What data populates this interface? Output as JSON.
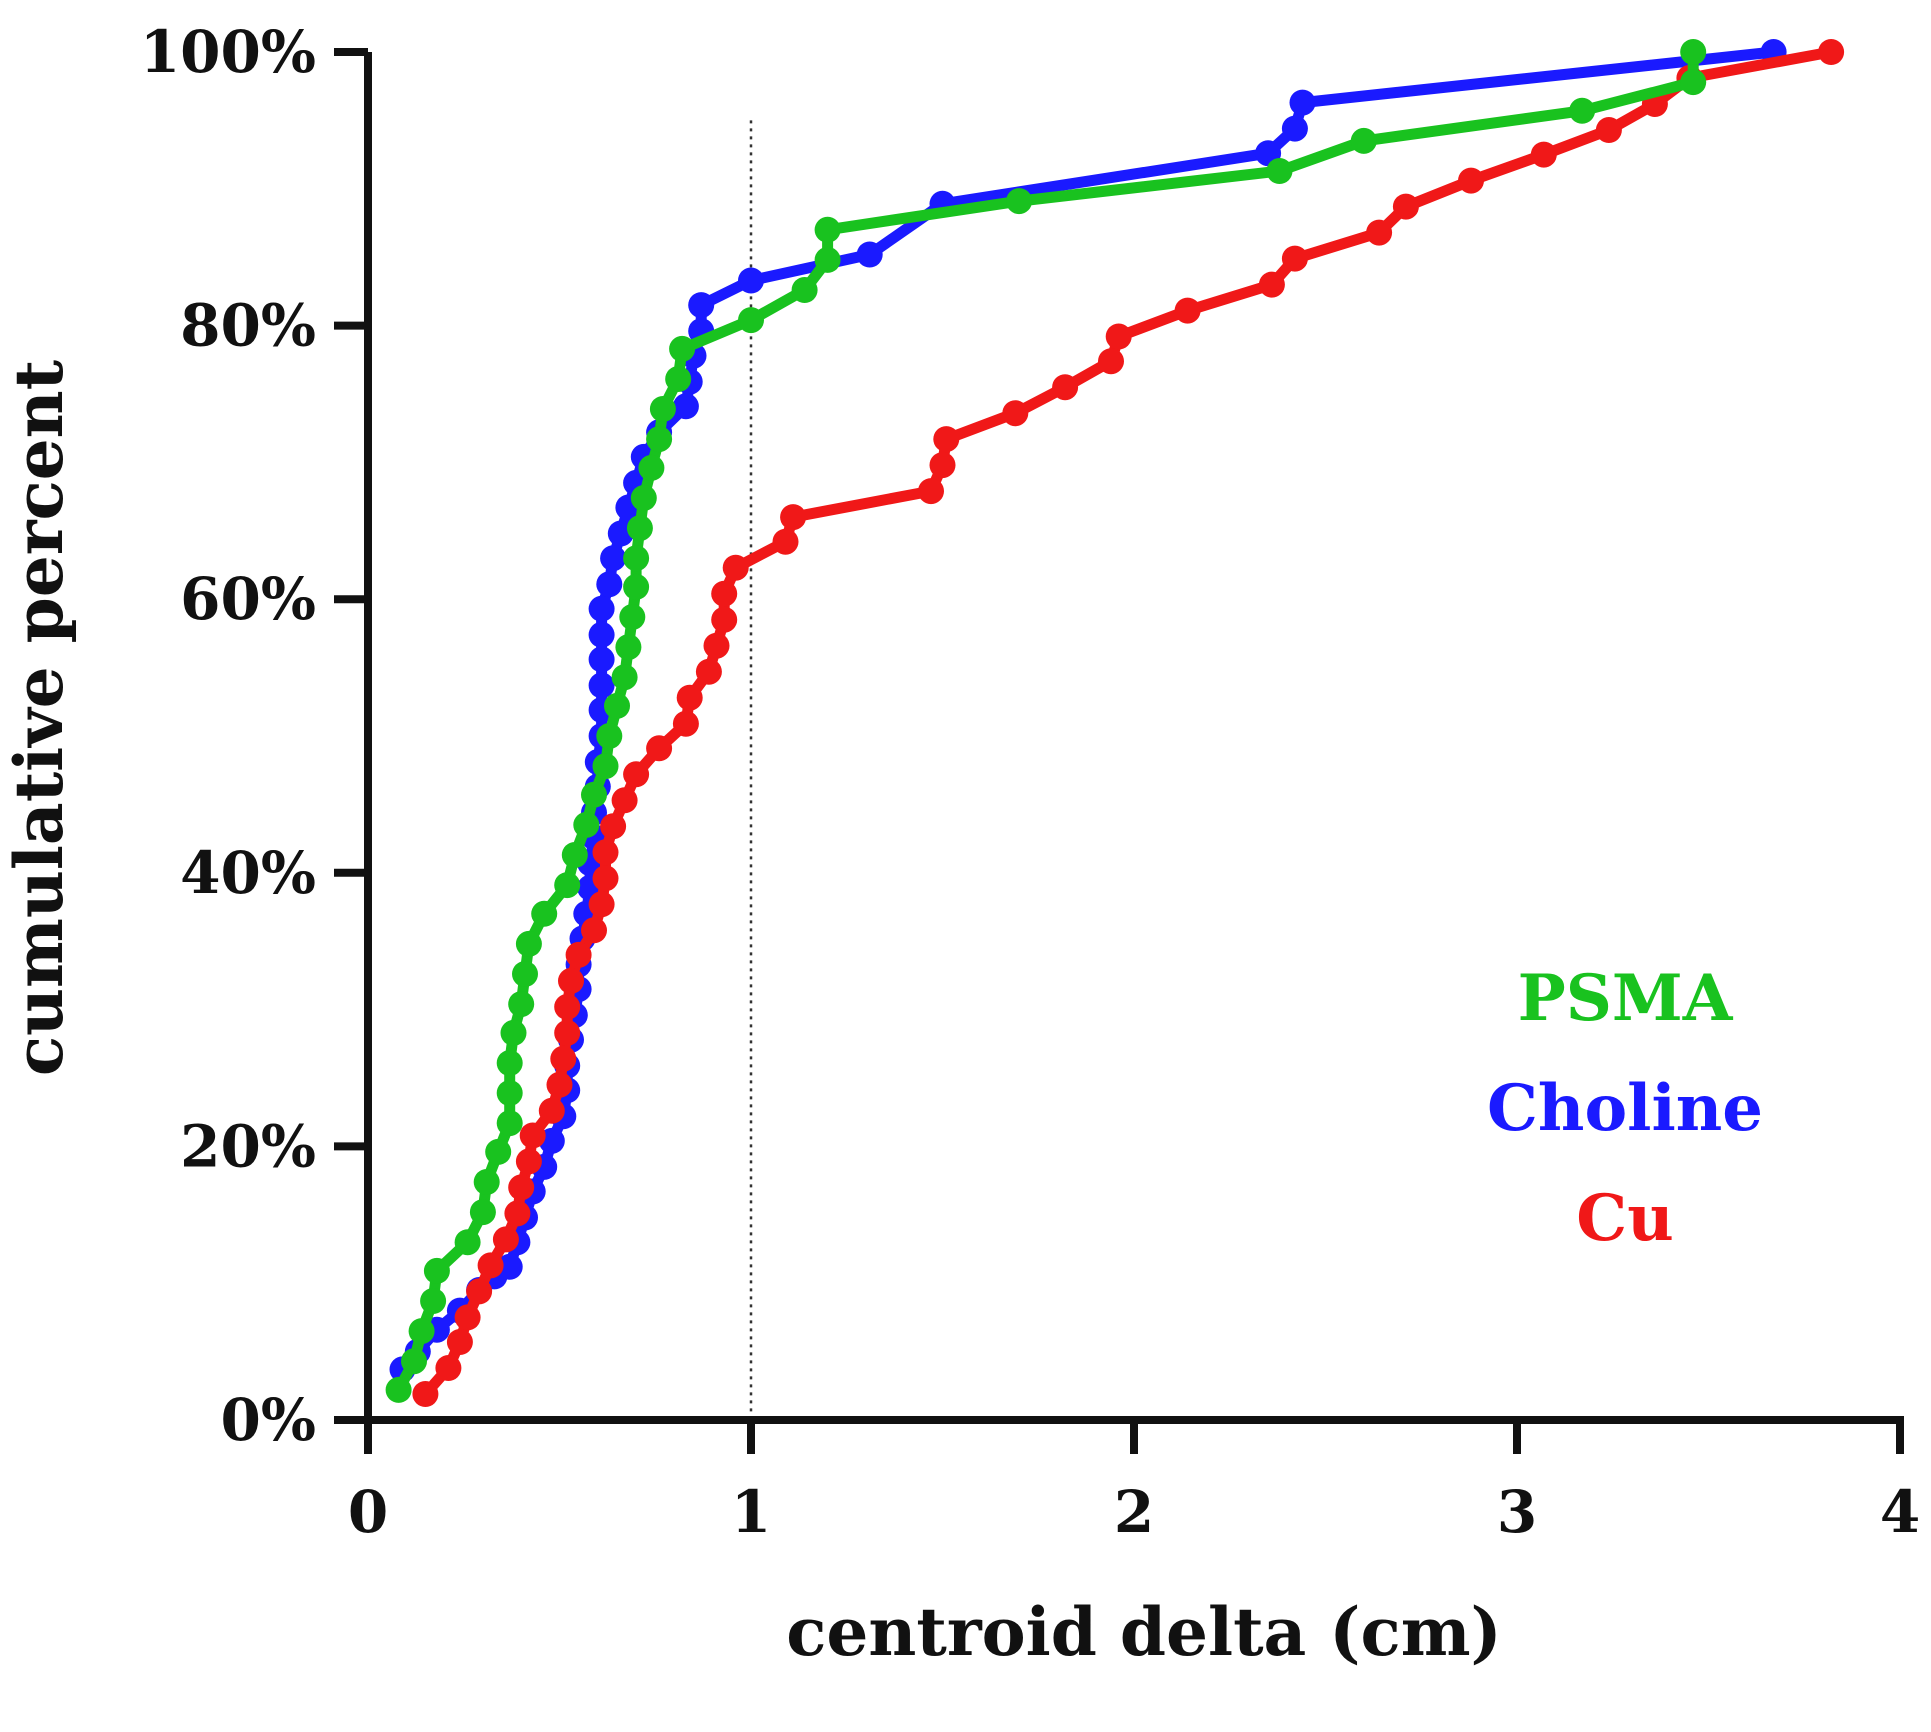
{
  "chart_data": {
    "type": "line",
    "title": "",
    "xlabel": "centroid delta (cm)",
    "ylabel": "cumulative percent",
    "xlim": [
      0,
      4
    ],
    "ylim": [
      0,
      100
    ],
    "xticks": [
      0,
      1,
      2,
      3,
      4
    ],
    "xtick_labels": [
      "0",
      "1",
      "2",
      "3",
      "4"
    ],
    "yticks": [
      0,
      20,
      40,
      60,
      80,
      100
    ],
    "ytick_labels": [
      "0%",
      "20%",
      "40%",
      "60%",
      "80%",
      "100%"
    ],
    "grid": false,
    "reference_line": {
      "axis": "x",
      "value": 1.0,
      "style": "dotted"
    },
    "legend": {
      "placement": "right"
    },
    "series": [
      {
        "name": "Choline",
        "color": "#1a1aff",
        "points": [
          [
            0.09,
            3.7
          ],
          [
            0.13,
            5.0
          ],
          [
            0.18,
            6.6
          ],
          [
            0.24,
            8.0
          ],
          [
            0.29,
            9.5
          ],
          [
            0.33,
            10.5
          ],
          [
            0.37,
            11.2
          ],
          [
            0.39,
            13.0
          ],
          [
            0.41,
            14.8
          ],
          [
            0.43,
            16.7
          ],
          [
            0.46,
            18.5
          ],
          [
            0.48,
            20.4
          ],
          [
            0.51,
            22.2
          ],
          [
            0.52,
            24.1
          ],
          [
            0.52,
            25.9
          ],
          [
            0.53,
            27.8
          ],
          [
            0.54,
            29.6
          ],
          [
            0.55,
            31.5
          ],
          [
            0.55,
            33.3
          ],
          [
            0.56,
            35.2
          ],
          [
            0.57,
            37.0
          ],
          [
            0.58,
            38.9
          ],
          [
            0.58,
            40.7
          ],
          [
            0.59,
            42.6
          ],
          [
            0.59,
            44.4
          ],
          [
            0.6,
            46.3
          ],
          [
            0.6,
            48.1
          ],
          [
            0.61,
            50.0
          ],
          [
            0.61,
            51.9
          ],
          [
            0.61,
            53.7
          ],
          [
            0.61,
            55.6
          ],
          [
            0.61,
            57.4
          ],
          [
            0.61,
            59.3
          ],
          [
            0.63,
            61.1
          ],
          [
            0.64,
            63.0
          ],
          [
            0.66,
            64.8
          ],
          [
            0.68,
            66.7
          ],
          [
            0.7,
            68.5
          ],
          [
            0.72,
            70.4
          ],
          [
            0.76,
            72.2
          ],
          [
            0.83,
            74.1
          ],
          [
            0.84,
            75.9
          ],
          [
            0.85,
            77.8
          ],
          [
            0.87,
            79.6
          ],
          [
            0.87,
            81.5
          ],
          [
            1.0,
            83.3
          ],
          [
            1.31,
            85.2
          ],
          [
            1.5,
            88.9
          ],
          [
            2.35,
            92.6
          ],
          [
            2.42,
            94.4
          ],
          [
            2.44,
            96.3
          ],
          [
            3.67,
            100.0
          ]
        ]
      },
      {
        "name": "PSMA",
        "color": "#19c21f",
        "points": [
          [
            0.08,
            2.2
          ],
          [
            0.12,
            4.3
          ],
          [
            0.14,
            6.5
          ],
          [
            0.17,
            8.7
          ],
          [
            0.18,
            10.9
          ],
          [
            0.26,
            13.0
          ],
          [
            0.3,
            15.2
          ],
          [
            0.31,
            17.4
          ],
          [
            0.34,
            19.6
          ],
          [
            0.37,
            21.7
          ],
          [
            0.37,
            23.9
          ],
          [
            0.37,
            26.1
          ],
          [
            0.38,
            28.3
          ],
          [
            0.4,
            30.4
          ],
          [
            0.41,
            32.6
          ],
          [
            0.42,
            34.8
          ],
          [
            0.46,
            37.0
          ],
          [
            0.52,
            39.1
          ],
          [
            0.54,
            41.3
          ],
          [
            0.57,
            43.5
          ],
          [
            0.59,
            45.7
          ],
          [
            0.62,
            47.8
          ],
          [
            0.63,
            50.0
          ],
          [
            0.65,
            52.2
          ],
          [
            0.67,
            54.3
          ],
          [
            0.68,
            56.5
          ],
          [
            0.69,
            58.7
          ],
          [
            0.7,
            60.9
          ],
          [
            0.7,
            63.0
          ],
          [
            0.71,
            65.2
          ],
          [
            0.72,
            67.4
          ],
          [
            0.74,
            69.6
          ],
          [
            0.76,
            71.7
          ],
          [
            0.77,
            73.9
          ],
          [
            0.81,
            76.1
          ],
          [
            0.82,
            78.3
          ],
          [
            1.0,
            80.4
          ],
          [
            1.14,
            82.6
          ],
          [
            1.2,
            84.8
          ],
          [
            1.2,
            87.0
          ],
          [
            1.7,
            89.1
          ],
          [
            2.38,
            91.3
          ],
          [
            2.6,
            93.5
          ],
          [
            3.17,
            95.7
          ],
          [
            3.46,
            97.8
          ],
          [
            3.46,
            100.0
          ]
        ]
      },
      {
        "name": "Cu",
        "color": "#f01818",
        "points": [
          [
            0.15,
            1.9
          ],
          [
            0.21,
            3.8
          ],
          [
            0.24,
            5.7
          ],
          [
            0.26,
            7.5
          ],
          [
            0.29,
            9.4
          ],
          [
            0.32,
            11.3
          ],
          [
            0.36,
            13.2
          ],
          [
            0.39,
            15.1
          ],
          [
            0.4,
            17.0
          ],
          [
            0.42,
            18.9
          ],
          [
            0.43,
            20.8
          ],
          [
            0.48,
            22.6
          ],
          [
            0.5,
            24.5
          ],
          [
            0.51,
            26.4
          ],
          [
            0.52,
            28.3
          ],
          [
            0.52,
            30.2
          ],
          [
            0.53,
            32.1
          ],
          [
            0.55,
            34.0
          ],
          [
            0.59,
            35.8
          ],
          [
            0.61,
            37.7
          ],
          [
            0.62,
            39.6
          ],
          [
            0.62,
            41.5
          ],
          [
            0.64,
            43.4
          ],
          [
            0.67,
            45.3
          ],
          [
            0.7,
            47.2
          ],
          [
            0.76,
            49.1
          ],
          [
            0.83,
            50.9
          ],
          [
            0.84,
            52.8
          ],
          [
            0.89,
            54.7
          ],
          [
            0.91,
            56.6
          ],
          [
            0.93,
            58.5
          ],
          [
            0.93,
            60.4
          ],
          [
            0.96,
            62.3
          ],
          [
            1.09,
            64.2
          ],
          [
            1.11,
            66.0
          ],
          [
            1.47,
            67.9
          ],
          [
            1.5,
            69.8
          ],
          [
            1.51,
            71.7
          ],
          [
            1.69,
            73.6
          ],
          [
            1.82,
            75.5
          ],
          [
            1.94,
            77.4
          ],
          [
            1.96,
            79.2
          ],
          [
            2.14,
            81.1
          ],
          [
            2.36,
            83.0
          ],
          [
            2.42,
            84.9
          ],
          [
            2.64,
            86.8
          ],
          [
            2.71,
            88.7
          ],
          [
            2.88,
            90.6
          ],
          [
            3.07,
            92.5
          ],
          [
            3.24,
            94.3
          ],
          [
            3.36,
            96.2
          ],
          [
            3.45,
            98.1
          ],
          [
            3.82,
            100.0
          ]
        ]
      }
    ]
  }
}
